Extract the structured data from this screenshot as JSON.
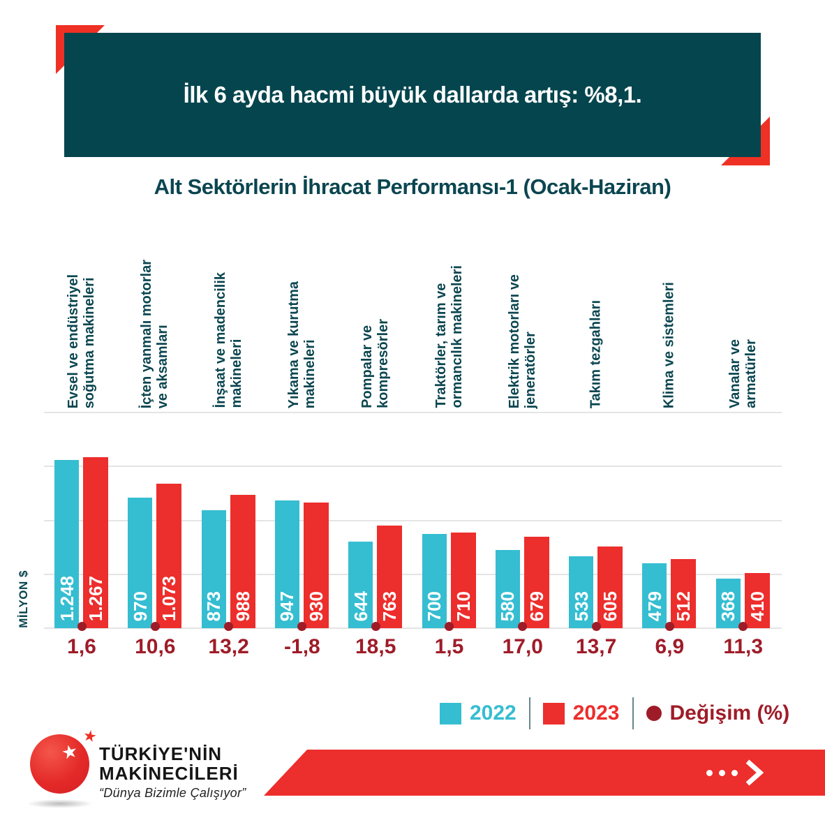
{
  "header": {
    "title": "İlk 6 ayda hacmi büyük dallarda artış: %8,1."
  },
  "subtitle": "Alt Sektörlerin İhracat Performansı-1 (Ocak-Haziran)",
  "chart_data": {
    "type": "bar",
    "title": "Alt Sektörlerin İhracat Performansı-1 (Ocak-Haziran)",
    "xlabel": "",
    "ylabel": "MİLYON $",
    "ylim": [
      0,
      1600
    ],
    "gridline_step": 400,
    "grid": true,
    "legend_position": "bottom",
    "categories": [
      [
        "Evsel ve endüstriyel",
        "soğutma makineleri"
      ],
      [
        "İçten yanmalı motorlar",
        "ve aksamları"
      ],
      [
        "İnşaat ve madencilik",
        "makineleri"
      ],
      [
        "Yıkama ve kurutma",
        "makineleri"
      ],
      [
        "Pompalar ve",
        "kompresörler"
      ],
      [
        "Traktörler, tarım ve",
        "ormancılık makineleri"
      ],
      [
        "Elektrik motorları ve",
        "jeneratörler"
      ],
      [
        "Takım tezgahları"
      ],
      [
        "Klima ve sistemleri"
      ],
      [
        "Vanalar ve",
        "armatürler"
      ]
    ],
    "series": [
      {
        "name": "2022",
        "color": "#35bdd1",
        "values": [
          1248,
          970,
          873,
          947,
          644,
          700,
          580,
          533,
          479,
          368
        ],
        "labels": [
          "1.248",
          "970",
          "873",
          "947",
          "644",
          "700",
          "580",
          "533",
          "479",
          "368"
        ]
      },
      {
        "name": "2023",
        "color": "#ec2e2c",
        "values": [
          1267,
          1073,
          988,
          930,
          763,
          710,
          679,
          605,
          512,
          410
        ],
        "labels": [
          "1.267",
          "1.073",
          "988",
          "930",
          "763",
          "710",
          "679",
          "605",
          "512",
          "410"
        ]
      }
    ],
    "change_percent": {
      "name": "Değişim (%)",
      "color": "#9e1c28",
      "values": [
        "1,6",
        "10,6",
        "13,2",
        "-1,8",
        "18,5",
        "1,5",
        "17,0",
        "13,7",
        "6,9",
        "11,3"
      ]
    }
  },
  "legend": {
    "items": [
      {
        "label": "2022",
        "color": "#35bdd1",
        "shape": "square"
      },
      {
        "label": "2023",
        "color": "#ec2e2c",
        "shape": "square"
      },
      {
        "label": "Değişim (%)",
        "color": "#9e1c28",
        "shape": "circle"
      }
    ]
  },
  "footer": {
    "brand_line1": "TÜRKİYE'NİN",
    "brand_line2": "MAKİNECİLERİ",
    "tagline": "“Dünya Bizimle Çalışıyor”",
    "star_icon": "★",
    "arrow_icon": "dots-chevron-right"
  },
  "colors": {
    "header_bg": "#05454e",
    "accent_red": "#ee3124",
    "bar_2022": "#35bdd1",
    "bar_2023": "#ec2e2c",
    "change_dark_red": "#9e1c28",
    "label_teal": "#0b4650",
    "gridline": "#e4e4e4"
  }
}
